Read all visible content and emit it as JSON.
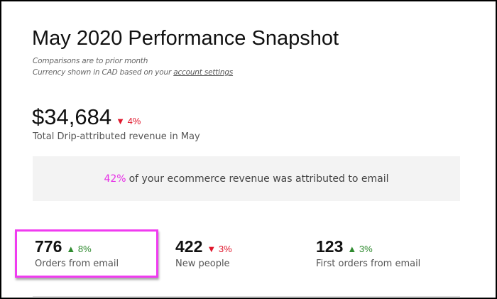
{
  "title": "May 2020 Performance Snapshot",
  "subtitle": {
    "line1": "Comparisons are to prior month",
    "line2_prefix": "Currency shown in CAD based on your ",
    "link": "account settings"
  },
  "revenue": {
    "value": "$34,684",
    "change": "4%",
    "direction": "down",
    "label": "Total Drip-attributed revenue in May"
  },
  "attribution": {
    "percent": "42%",
    "text": "of your ecommerce revenue was attributed to email"
  },
  "stats": [
    {
      "value": "776",
      "change": "8%",
      "direction": "up",
      "label": "Orders from email",
      "highlighted": true
    },
    {
      "value": "422",
      "change": "3%",
      "direction": "down",
      "label": "New people"
    },
    {
      "value": "123",
      "change": "3%",
      "direction": "up",
      "label": "First orders from email"
    }
  ],
  "colors": {
    "down": "#e0182d",
    "up": "#2e8a2e",
    "accent": "#e62ee6",
    "highlight": "#f03cf0"
  },
  "icons": {
    "down": "triangle-down-icon",
    "up": "triangle-up-icon"
  }
}
